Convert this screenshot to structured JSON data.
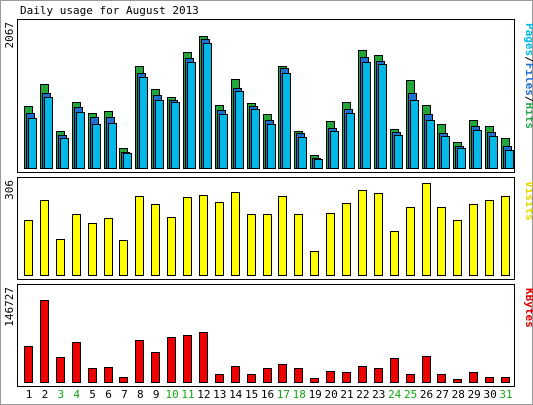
{
  "chart_data": {
    "type": "bar",
    "title": "Daily usage for August 2013",
    "categories": [
      "1",
      "2",
      "3",
      "4",
      "5",
      "6",
      "7",
      "8",
      "9",
      "10",
      "11",
      "12",
      "13",
      "14",
      "15",
      "16",
      "17",
      "18",
      "19",
      "20",
      "21",
      "22",
      "23",
      "24",
      "25",
      "26",
      "27",
      "28",
      "29",
      "30",
      "31"
    ],
    "weekend_days": [
      "3",
      "4",
      "10",
      "11",
      "17",
      "18",
      "24",
      "25",
      "31"
    ],
    "panels": [
      {
        "id": "hits",
        "ylabel_parts": [
          {
            "text": "Pages",
            "color": "#00b8e6"
          },
          {
            "text": "/",
            "color": "#000000"
          },
          {
            "text": "Files",
            "color": "#1f6fd0"
          },
          {
            "text": "/",
            "color": "#000000"
          },
          {
            "text": "Hits",
            "color": "#2aa84a"
          }
        ],
        "max_label": "2067",
        "ylim": [
          0,
          2067
        ],
        "series": [
          {
            "name": "Hits",
            "color": "#22a63a",
            "values": [
              900,
              1210,
              540,
              960,
              800,
              830,
              290,
              1480,
              1140,
              1030,
              1680,
              1910,
              910,
              1280,
              940,
              780,
              1480,
              540,
              190,
              680,
              950,
              1700,
              1640,
              570,
              1270,
              910,
              630,
              370,
              690,
              600,
              430
            ]
          },
          {
            "name": "Files",
            "color": "#1f6fd0",
            "values": [
              790,
              1080,
              470,
              880,
              730,
              730,
              230,
              1380,
              1050,
              990,
              1590,
              1870,
              840,
              1160,
              900,
              700,
              1440,
              510,
              150,
              580,
              850,
              1610,
              1550,
              520,
              1080,
              780,
              510,
              320,
              600,
              520,
              320
            ]
          },
          {
            "name": "Pages",
            "color": "#00b8e6",
            "values": [
              720,
              1020,
              430,
              810,
              640,
              650,
              210,
              1320,
              990,
              950,
              1530,
              1810,
              780,
              1110,
              850,
              640,
              1370,
              450,
              130,
              540,
              800,
              1530,
              1500,
              470,
              980,
              690,
              460,
              290,
              550,
              460,
              260
            ]
          }
        ]
      },
      {
        "id": "visits",
        "ylabel_parts": [
          {
            "text": "Visits",
            "color": "#e6d800"
          }
        ],
        "max_label": "306",
        "ylim": [
          0,
          306
        ],
        "series": [
          {
            "name": "Visits",
            "color": "#ffff00",
            "values": [
              182,
              249,
              119,
              203,
              173,
              190,
              117,
              264,
              236,
              194,
              259,
              266,
              244,
              277,
              204,
              202,
              263,
              204,
              80,
              205,
              240,
              283,
              273,
              146,
              227,
              306,
              226,
              184,
              236,
              250,
              262
            ]
          }
        ]
      },
      {
        "id": "kbytes",
        "ylabel_parts": [
          {
            "text": "KBytes",
            "color": "#e00000"
          }
        ],
        "max_label": "146727",
        "ylim": [
          0,
          146727
        ],
        "series": [
          {
            "name": "KBytes",
            "color": "#ee0000",
            "values": [
              57000,
              130000,
              40000,
              64000,
              23000,
              24000,
              8000,
              67000,
              48000,
              71000,
              75000,
              80000,
              13000,
              25000,
              13000,
              23000,
              28000,
              22000,
              6000,
              18000,
              16000,
              25000,
              23000,
              38000,
              13000,
              42000,
              12000,
              5000,
              16000,
              8000,
              8000
            ]
          }
        ]
      }
    ]
  }
}
